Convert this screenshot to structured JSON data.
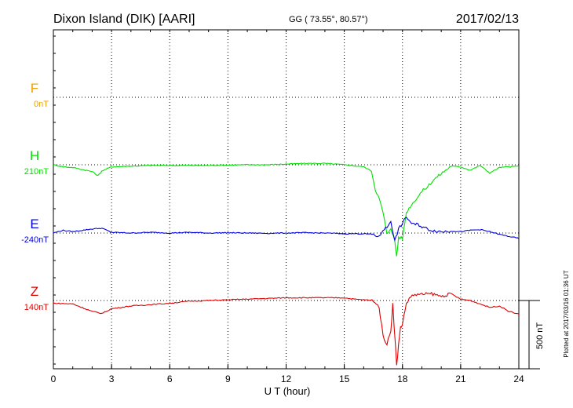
{
  "header": {
    "station": "Dixon Island (DIK)  [AARI]",
    "coords": "GG ( 73.55°,  80.57°)",
    "date": "2017/02/13"
  },
  "footer": {
    "xlabel": "U T (hour)",
    "plotted": "Plotted at 2017/03/16 01:36 UT",
    "scale_label": "500 nT"
  },
  "chart_data": {
    "type": "line",
    "title": "Dixon Island (DIK)  [AARI]",
    "xlabel": "U T (hour)",
    "xlim": [
      0,
      24
    ],
    "xticks": [
      0,
      3,
      6,
      9,
      12,
      15,
      18,
      21,
      24
    ],
    "grid": true,
    "scale_bar_nT": 500,
    "series": [
      {
        "name": "F",
        "baseline_label": "0nT",
        "color": "#f0a000",
        "x": [],
        "y": []
      },
      {
        "name": "H",
        "baseline_label": "210nT",
        "color": "#00e000",
        "x": [
          0,
          0.5,
          1,
          1.5,
          2,
          2.3,
          2.5,
          3,
          4,
          5,
          6,
          7,
          8,
          9,
          10,
          11,
          12,
          13,
          14,
          15,
          16,
          16.4,
          16.6,
          16.8,
          17,
          17.2,
          17.4,
          17.6,
          17.7,
          17.8,
          18,
          18.2,
          18.4,
          18.7,
          19,
          19.3,
          19.6,
          20,
          20.5,
          21,
          21.5,
          22,
          22.5,
          23,
          23.5,
          24
        ],
        "y": [
          210,
          195,
          190,
          175,
          160,
          130,
          165,
          195,
          200,
          205,
          205,
          205,
          205,
          208,
          210,
          210,
          215,
          220,
          220,
          210,
          195,
          165,
          30,
          -40,
          -140,
          -300,
          -250,
          -350,
          -460,
          -320,
          -330,
          -140,
          -95,
          -40,
          15,
          50,
          100,
          145,
          200,
          195,
          170,
          205,
          150,
          190,
          195,
          200
        ]
      },
      {
        "name": "E",
        "baseline_label": "-240nT",
        "color": "#0000e0",
        "x": [
          0,
          0.5,
          1,
          1.5,
          2,
          2.5,
          3,
          4,
          5,
          6,
          7,
          8,
          9,
          10,
          11,
          12,
          13,
          14,
          15,
          16,
          16.5,
          16.8,
          17,
          17.2,
          17.4,
          17.6,
          17.8,
          18,
          18.2,
          18.4,
          18.6,
          18.8,
          19,
          19.5,
          20,
          20.5,
          21,
          21.5,
          22,
          22.5,
          23,
          23.5,
          24
        ],
        "y": [
          -240,
          -220,
          -230,
          -220,
          -210,
          -205,
          -235,
          -240,
          -235,
          -240,
          -235,
          -240,
          -238,
          -240,
          -242,
          -240,
          -238,
          -240,
          -245,
          -245,
          -250,
          -270,
          -215,
          -200,
          -150,
          -300,
          -210,
          -170,
          -120,
          -160,
          -180,
          -175,
          -195,
          -220,
          -230,
          -225,
          -230,
          -220,
          -215,
          -230,
          -250,
          -265,
          -280
        ]
      },
      {
        "name": "Z",
        "baseline_label": "140nT",
        "color": "#e00000",
        "x": [
          0,
          1,
          2,
          2.5,
          3,
          4,
          5,
          6,
          7,
          8,
          9,
          10,
          11,
          12,
          13,
          14,
          15,
          15.5,
          16,
          16.5,
          16.8,
          17,
          17.2,
          17.4,
          17.5,
          17.7,
          17.8,
          17.9,
          18,
          18.2,
          18.5,
          19,
          19.5,
          20,
          20.5,
          21,
          21.5,
          22,
          22.5,
          23,
          23.5,
          24
        ],
        "y": [
          120,
          115,
          60,
          45,
          80,
          100,
          110,
          120,
          135,
          140,
          145,
          150,
          155,
          160,
          160,
          160,
          160,
          150,
          145,
          140,
          90,
          -120,
          -180,
          -80,
          120,
          -340,
          -180,
          -60,
          -30,
          120,
          180,
          185,
          190,
          170,
          190,
          150,
          140,
          115,
          90,
          100,
          60,
          40
        ]
      }
    ],
    "annotations": [
      "Plotted at 2017/03/16 01:36 UT"
    ]
  }
}
